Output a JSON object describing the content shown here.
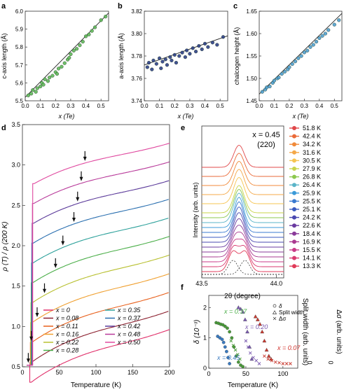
{
  "chart_data": [
    {
      "panel": "a",
      "type": "scatter",
      "xlabel": "x (Te)",
      "ylabel": "c-axis length (Å)",
      "xlim": [
        0,
        0.55
      ],
      "ylim": [
        5.5,
        6.0
      ],
      "xticks": [
        "0.0",
        "0.1",
        "0.2",
        "0.3",
        "0.4",
        "0.5"
      ],
      "yticks": [
        "5.5",
        "5.6",
        "5.7",
        "5.8",
        "5.9",
        "6.0"
      ],
      "color": "#5fb85a",
      "fit": [
        [
          0.0,
          5.52
        ],
        [
          0.55,
          5.99
        ]
      ],
      "points": [
        [
          0.02,
          5.53
        ],
        [
          0.04,
          5.54
        ],
        [
          0.05,
          5.56
        ],
        [
          0.07,
          5.55
        ],
        [
          0.08,
          5.57
        ],
        [
          0.1,
          5.58
        ],
        [
          0.11,
          5.6
        ],
        [
          0.12,
          5.59
        ],
        [
          0.13,
          5.62
        ],
        [
          0.15,
          5.61
        ],
        [
          0.16,
          5.63
        ],
        [
          0.18,
          5.64
        ],
        [
          0.2,
          5.66
        ],
        [
          0.21,
          5.65
        ],
        [
          0.22,
          5.68
        ],
        [
          0.24,
          5.69
        ],
        [
          0.26,
          5.71
        ],
        [
          0.28,
          5.73
        ],
        [
          0.29,
          5.74
        ],
        [
          0.3,
          5.76
        ],
        [
          0.32,
          5.78
        ],
        [
          0.34,
          5.79
        ],
        [
          0.36,
          5.81
        ],
        [
          0.38,
          5.83
        ],
        [
          0.4,
          5.86
        ],
        [
          0.42,
          5.87
        ],
        [
          0.44,
          5.89
        ],
        [
          0.46,
          5.91
        ],
        [
          0.5,
          5.95
        ],
        [
          0.53,
          5.97
        ]
      ]
    },
    {
      "panel": "b",
      "type": "scatter",
      "xlabel": "x (Te)",
      "ylabel": "a-axis length (Å)",
      "xlim": [
        0,
        0.55
      ],
      "ylim": [
        3.74,
        3.82
      ],
      "xticks": [
        "0.0",
        "0.1",
        "0.2",
        "0.3",
        "0.4",
        "0.5"
      ],
      "yticks": [
        "3.74",
        "3.76",
        "3.78",
        "3.80",
        "3.82"
      ],
      "color": "#2e3f87",
      "fit": [
        [
          0.0,
          3.772
        ],
        [
          0.55,
          3.798
        ]
      ],
      "points": [
        [
          0.02,
          3.77
        ],
        [
          0.03,
          3.774
        ],
        [
          0.05,
          3.768
        ],
        [
          0.06,
          3.776
        ],
        [
          0.08,
          3.773
        ],
        [
          0.1,
          3.778
        ],
        [
          0.11,
          3.769
        ],
        [
          0.12,
          3.775
        ],
        [
          0.14,
          3.777
        ],
        [
          0.15,
          3.772
        ],
        [
          0.17,
          3.779
        ],
        [
          0.18,
          3.776
        ],
        [
          0.2,
          3.781
        ],
        [
          0.21,
          3.774
        ],
        [
          0.23,
          3.78
        ],
        [
          0.25,
          3.783
        ],
        [
          0.27,
          3.779
        ],
        [
          0.28,
          3.785
        ],
        [
          0.3,
          3.782
        ],
        [
          0.32,
          3.787
        ],
        [
          0.34,
          3.784
        ],
        [
          0.36,
          3.789
        ],
        [
          0.38,
          3.786
        ],
        [
          0.4,
          3.791
        ],
        [
          0.42,
          3.788
        ],
        [
          0.45,
          3.792
        ],
        [
          0.48,
          3.79
        ],
        [
          0.52,
          3.797
        ]
      ]
    },
    {
      "panel": "c",
      "type": "scatter",
      "xlabel": "x (Te)",
      "ylabel": "chalcogen height (Å)",
      "xlim": [
        0,
        0.55
      ],
      "ylim": [
        1.45,
        1.65
      ],
      "xticks": [
        "0.0",
        "0.1",
        "0.2",
        "0.3",
        "0.4",
        "0.5"
      ],
      "yticks": [
        "1.45",
        "1.50",
        "1.55",
        "1.60",
        "1.65"
      ],
      "color": "#4f9fd0",
      "fit": [
        [
          0.0,
          1.465
        ],
        [
          0.55,
          1.645
        ]
      ],
      "points": [
        [
          0.02,
          1.47
        ],
        [
          0.04,
          1.475
        ],
        [
          0.05,
          1.48
        ],
        [
          0.07,
          1.482
        ],
        [
          0.09,
          1.49
        ],
        [
          0.1,
          1.495
        ],
        [
          0.12,
          1.5
        ],
        [
          0.13,
          1.502
        ],
        [
          0.15,
          1.51
        ],
        [
          0.17,
          1.515
        ],
        [
          0.19,
          1.52
        ],
        [
          0.2,
          1.525
        ],
        [
          0.22,
          1.532
        ],
        [
          0.24,
          1.538
        ],
        [
          0.26,
          1.545
        ],
        [
          0.28,
          1.55
        ],
        [
          0.3,
          1.558
        ],
        [
          0.32,
          1.562
        ],
        [
          0.34,
          1.57
        ],
        [
          0.36,
          1.575
        ],
        [
          0.38,
          1.582
        ],
        [
          0.4,
          1.59
        ],
        [
          0.42,
          1.595
        ],
        [
          0.44,
          1.6
        ],
        [
          0.46,
          1.608
        ],
        [
          0.5,
          1.62
        ],
        [
          0.53,
          1.63
        ]
      ]
    },
    {
      "panel": "d",
      "type": "line",
      "xlabel": "Temperature (K)",
      "ylabel": "ρ (T) / ρ (200 K)",
      "xlim": [
        0,
        200
      ],
      "ylim": [
        0.5,
        3.5
      ],
      "xticks": [
        "0",
        "50",
        "100",
        "150",
        "200"
      ],
      "yticks": [
        "0.5",
        "1.0",
        "1.5",
        "2.0",
        "2.5",
        "3.0",
        "3.5"
      ],
      "series": [
        {
          "name": "x = 0",
          "color": "#e0306a",
          "offset": 0.0,
          "arrow": null
        },
        {
          "name": "x = 0.08",
          "color": "#8b1f2e",
          "offset": 0.25,
          "arrow": 8
        },
        {
          "name": "x = 0.11",
          "color": "#e8601c",
          "offset": 0.5,
          "arrow": 12
        },
        {
          "name": "x = 0.16",
          "color": "#f0a030",
          "offset": 0.75,
          "arrow": 20
        },
        {
          "name": "x = 0.22",
          "color": "#b8c030",
          "offset": 1.0,
          "arrow": 30
        },
        {
          "name": "x = 0.28",
          "color": "#4aae48",
          "offset": 1.25,
          "arrow": 45
        },
        {
          "name": "x = 0.35",
          "color": "#2ba09a",
          "offset": 1.5,
          "arrow": 55
        },
        {
          "name": "x = 0.37",
          "color": "#2a6fb0",
          "offset": 1.75,
          "arrow": 70
        },
        {
          "name": "x = 0.42",
          "color": "#5b3a9a",
          "offset": 2.0,
          "arrow": 75
        },
        {
          "name": "x = 0.48",
          "color": "#b83a9a",
          "offset": 2.25,
          "arrow": 80
        },
        {
          "name": "x = 0.50",
          "color": "#e04aa0",
          "offset": 2.5,
          "arrow": 85
        }
      ]
    },
    {
      "panel": "e",
      "type": "line",
      "xlabel": "2θ (degree)",
      "ylabel": "Intensity (arb. units)",
      "xlim": [
        43.5,
        44.05
      ],
      "xticks": [
        "43.5",
        "44.0"
      ],
      "annotation": [
        "x = 0.45",
        "(220)"
      ],
      "series": [
        {
          "name": "51.8 K",
          "color": "#e0484a"
        },
        {
          "name": "42.4 K",
          "color": "#ea6a38"
        },
        {
          "name": "34.2 K",
          "color": "#f08a3a"
        },
        {
          "name": "31.6 K",
          "color": "#f4a848"
        },
        {
          "name": "30.5 K",
          "color": "#f6c450"
        },
        {
          "name": "27.9 K",
          "color": "#c8d44a"
        },
        {
          "name": "26.8 K",
          "color": "#8cc84e"
        },
        {
          "name": "26.4 K",
          "color": "#5ab4c8"
        },
        {
          "name": "25.9 K",
          "color": "#3a9ad8"
        },
        {
          "name": "25.5 K",
          "color": "#3a7ad0"
        },
        {
          "name": "25.1 K",
          "color": "#3a5ac0"
        },
        {
          "name": "24.2 K",
          "color": "#4a48b0"
        },
        {
          "name": "22.6 K",
          "color": "#6a3aa0"
        },
        {
          "name": "18.4 K",
          "color": "#8a3a9a"
        },
        {
          "name": "16.9 K",
          "color": "#aa3a90"
        },
        {
          "name": "15.5 K",
          "color": "#c83a88"
        },
        {
          "name": "14.1 K",
          "color": "#d83a70"
        },
        {
          "name": "13.3 K",
          "color": "#e03a58"
        }
      ]
    },
    {
      "panel": "f",
      "type": "scatter",
      "xlabel": "Temperature (K)",
      "ylabel": "δ (10⁻³)",
      "ylabel2a": "Split width (arb. units)",
      "ylabel2b": "Δσ (arb. units)",
      "xlim": [
        0,
        120
      ],
      "ylim": [
        0,
        2.4
      ],
      "xticks": [
        "0",
        "50",
        "100"
      ],
      "yticks": [
        "0",
        "1",
        "2"
      ],
      "legend": [
        "δ",
        "Split width",
        "Δσ"
      ],
      "right_ticks": [
        "0",
        "0"
      ],
      "series": [
        {
          "name": "x = 0.37",
          "color": "#4a9a3a",
          "label_color": "#4aae48"
        },
        {
          "name": "x = 0.45",
          "color": "#3a7ac0",
          "label_color": "#3a7ac0"
        },
        {
          "name": "x = 0.20",
          "color": "#7a5ab0",
          "label_color": "#7a5ab0"
        },
        {
          "name": "x = 0.07",
          "color": "#c83a30",
          "label_color": "#d0302a"
        }
      ]
    }
  ],
  "panel_labels": [
    "a",
    "b",
    "c",
    "d",
    "e",
    "f"
  ]
}
